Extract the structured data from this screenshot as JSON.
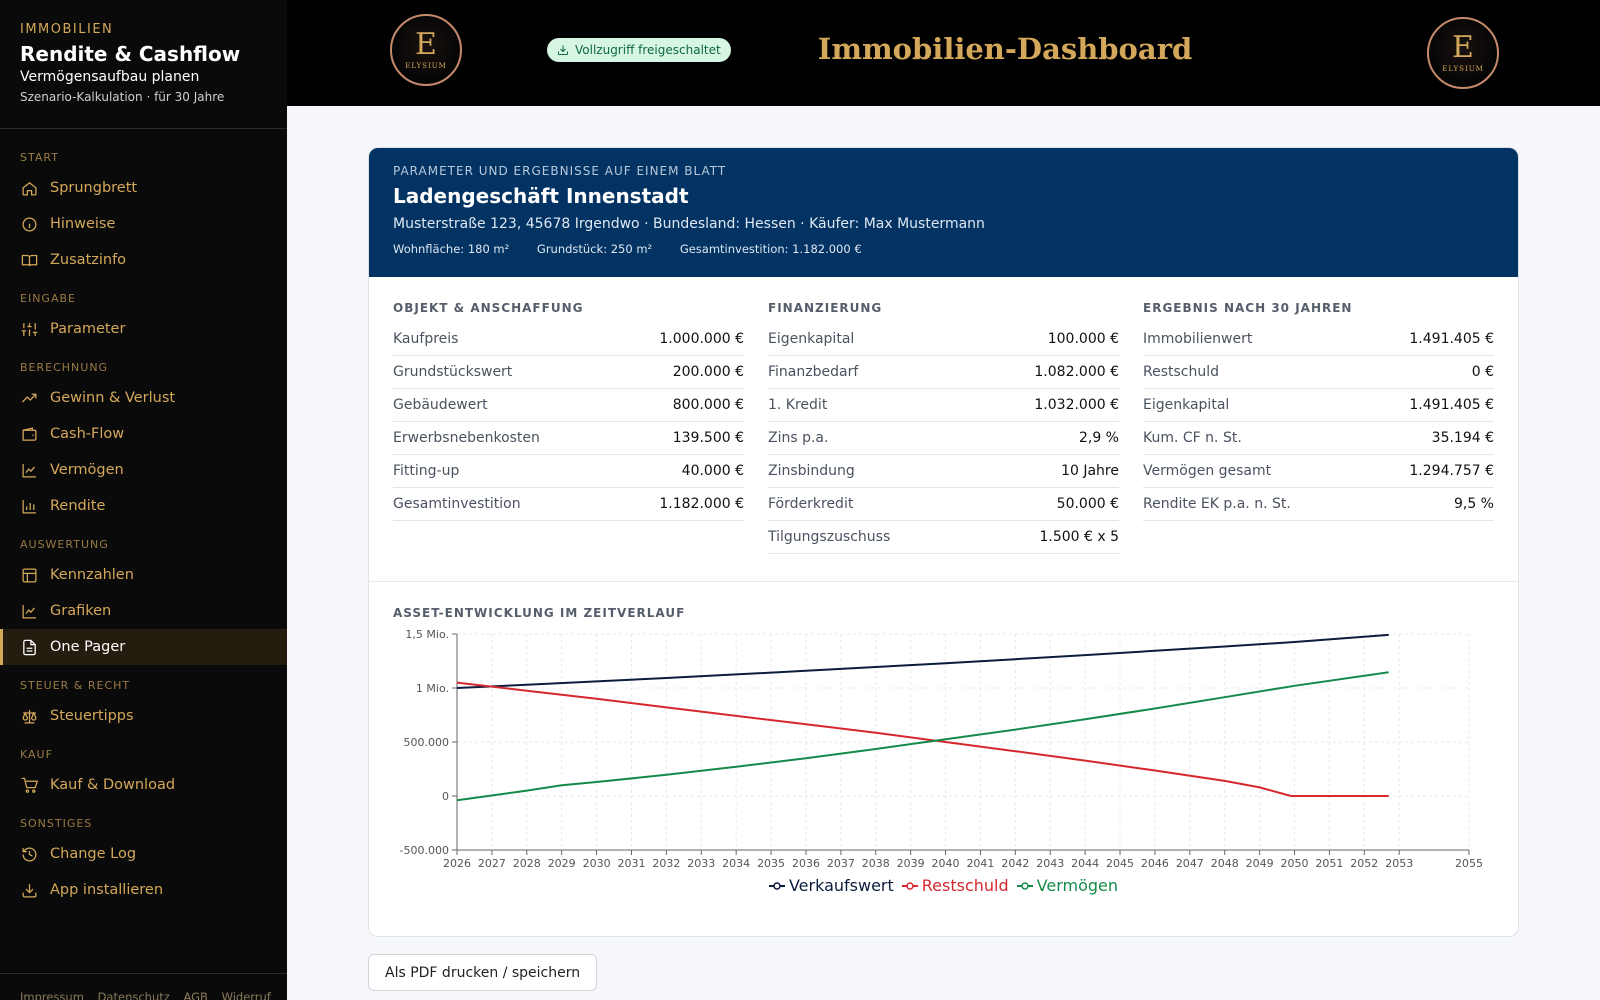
{
  "sidebar": {
    "kicker": "IMMOBILIEN",
    "title": "Rendite & Cashflow",
    "subtitle": "Vermögensaufbau planen",
    "meta": "Szenario-Kalkulation · für 30 Jahre",
    "sections": {
      "start": "START",
      "eingabe": "EINGABE",
      "berechnung": "BERECHNUNG",
      "auswertung": "AUSWERTUNG",
      "steuer": "STEUER & RECHT",
      "kauf": "KAUF",
      "sonstiges": "SONSTIGES"
    },
    "items": {
      "sprungbrett": "Sprungbrett",
      "hinweise": "Hinweise",
      "zusatzinfo": "Zusatzinfo",
      "parameter": "Parameter",
      "gewinn": "Gewinn & Verlust",
      "cashflow": "Cash-Flow",
      "vermoegen": "Vermögen",
      "rendite": "Rendite",
      "kennzahlen": "Kennzahlen",
      "grafiken": "Grafiken",
      "onepager": "One Pager",
      "steuertipps": "Steuertipps",
      "kauf_download": "Kauf & Download",
      "changelog": "Change Log",
      "app_installieren": "App installieren"
    },
    "footer": {
      "impressum": "Impressum",
      "datenschutz": "Datenschutz",
      "agb": "AGB",
      "widerruf": "Widerruf"
    },
    "accent_color": "#d4a85a"
  },
  "header": {
    "logo_letter": "E",
    "logo_text": "ELYSIUM",
    "badge": "Vollzugriff freigeschaltet",
    "title": "Immobilien-Dashboard"
  },
  "card": {
    "kicker": "PARAMETER UND ERGEBNISSE AUF EINEM BLATT",
    "object": "Ladengeschäft Innenstadt",
    "address": "Musterstraße 123, 45678 Irgendwo · Bundesland: Hessen · Käufer: Max Mustermann",
    "facts": {
      "wohnflaeche": "Wohnfläche: 180 m²",
      "grundstueck": "Grundstück: 250 m²",
      "gesamtinvestition": "Gesamtinvestition: 1.182.000 €"
    },
    "columns": [
      {
        "title": "OBJEKT & ANSCHAFFUNG",
        "rows": [
          {
            "k": "Kaufpreis",
            "v": "1.000.000 €"
          },
          {
            "k": "Grundstückswert",
            "v": "200.000 €"
          },
          {
            "k": "Gebäudewert",
            "v": "800.000 €"
          },
          {
            "k": "Erwerbsnebenkosten",
            "v": "139.500 €"
          },
          {
            "k": "Fitting-up",
            "v": "40.000 €"
          },
          {
            "k": "Gesamtinvestition",
            "v": "1.182.000 €"
          }
        ]
      },
      {
        "title": "FINANZIERUNG",
        "rows": [
          {
            "k": "Eigenkapital",
            "v": "100.000 €"
          },
          {
            "k": "Finanzbedarf",
            "v": "1.082.000 €"
          },
          {
            "k": "1. Kredit",
            "v": "1.032.000 €"
          },
          {
            "k": "Zins p.a.",
            "v": "2,9 %"
          },
          {
            "k": "Zinsbindung",
            "v": "10 Jahre"
          },
          {
            "k": "Förderkredit",
            "v": "50.000 €"
          },
          {
            "k": "Tilgungszuschuss",
            "v": "1.500 € x 5"
          }
        ]
      },
      {
        "title": "ERGEBNIS NACH 30 JAHREN",
        "rows": [
          {
            "k": "Immobilienwert",
            "v": "1.491.405 €"
          },
          {
            "k": "Restschuld",
            "v": "0 €"
          },
          {
            "k": "Eigenkapital",
            "v": "1.491.405 €"
          },
          {
            "k": "Kum. CF n. St.",
            "v": "35.194 €"
          },
          {
            "k": "Vermögen gesamt",
            "v": "1.294.757 €"
          },
          {
            "k": "Rendite EK p.a. n. St.",
            "v": "9,5 %"
          }
        ]
      }
    ],
    "chart_title": "ASSET-ENTWICKLUNG IM ZEITVERLAUF"
  },
  "chart_data": {
    "type": "line",
    "title": "ASSET-ENTWICKLUNG IM ZEITVERLAUF",
    "x_ticks": [
      "2026",
      "2027",
      "2028",
      "2029",
      "2030",
      "2031",
      "2032",
      "2033",
      "2034",
      "2035",
      "2036",
      "2037",
      "2038",
      "2039",
      "2040",
      "2041",
      "2042",
      "2043",
      "2044",
      "2045",
      "2046",
      "2047",
      "2048",
      "2049",
      "2050",
      "2051",
      "2052",
      "2053",
      "2055"
    ],
    "x_range": [
      2026,
      2055
    ],
    "y_ticks": [
      {
        "value": 1500000,
        "label": "1,5 Mio."
      },
      {
        "value": 1000000,
        "label": "1 Mio."
      },
      {
        "value": 500000,
        "label": "500.000"
      },
      {
        "value": 0,
        "label": "0"
      },
      {
        "value": -500000,
        "label": "-500.000"
      }
    ],
    "ylim": [
      -500000,
      1500000
    ],
    "grid": true,
    "legend_position": "bottom",
    "series": [
      {
        "name": "Verkaufswert",
        "color": "#0c1c3e",
        "points": [
          [
            2026,
            1000000
          ],
          [
            2028,
            1030000
          ],
          [
            2030,
            1061000
          ],
          [
            2032,
            1093000
          ],
          [
            2034,
            1126000
          ],
          [
            2036,
            1159000
          ],
          [
            2038,
            1194000
          ],
          [
            2040,
            1230000
          ],
          [
            2042,
            1267000
          ],
          [
            2044,
            1305000
          ],
          [
            2046,
            1344000
          ],
          [
            2048,
            1384000
          ],
          [
            2050,
            1426000
          ],
          [
            2052.7,
            1491405
          ]
        ]
      },
      {
        "name": "Restschuld",
        "color": "#d4282e",
        "points": [
          [
            2026,
            1050000
          ],
          [
            2028,
            975000
          ],
          [
            2030,
            900000
          ],
          [
            2032,
            820000
          ],
          [
            2034,
            742000
          ],
          [
            2036,
            665000
          ],
          [
            2038,
            585000
          ],
          [
            2040,
            500000
          ],
          [
            2042,
            415000
          ],
          [
            2044,
            328000
          ],
          [
            2046,
            236000
          ],
          [
            2048,
            140000
          ],
          [
            2049,
            80000
          ],
          [
            2049.9,
            0
          ],
          [
            2052.7,
            0
          ]
        ]
      },
      {
        "name": "Vermögen",
        "color": "#148a4a",
        "points": [
          [
            2026,
            -40000
          ],
          [
            2028,
            50000
          ],
          [
            2029,
            100000
          ],
          [
            2030,
            130000
          ],
          [
            2032,
            196000
          ],
          [
            2034,
            270000
          ],
          [
            2036,
            350000
          ],
          [
            2038,
            435000
          ],
          [
            2040,
            525000
          ],
          [
            2042,
            615000
          ],
          [
            2044,
            710000
          ],
          [
            2046,
            810000
          ],
          [
            2048,
            915000
          ],
          [
            2050,
            1020000
          ],
          [
            2052.7,
            1145000
          ]
        ]
      }
    ]
  },
  "actions": {
    "pdf": "Als PDF drucken / speichern"
  }
}
